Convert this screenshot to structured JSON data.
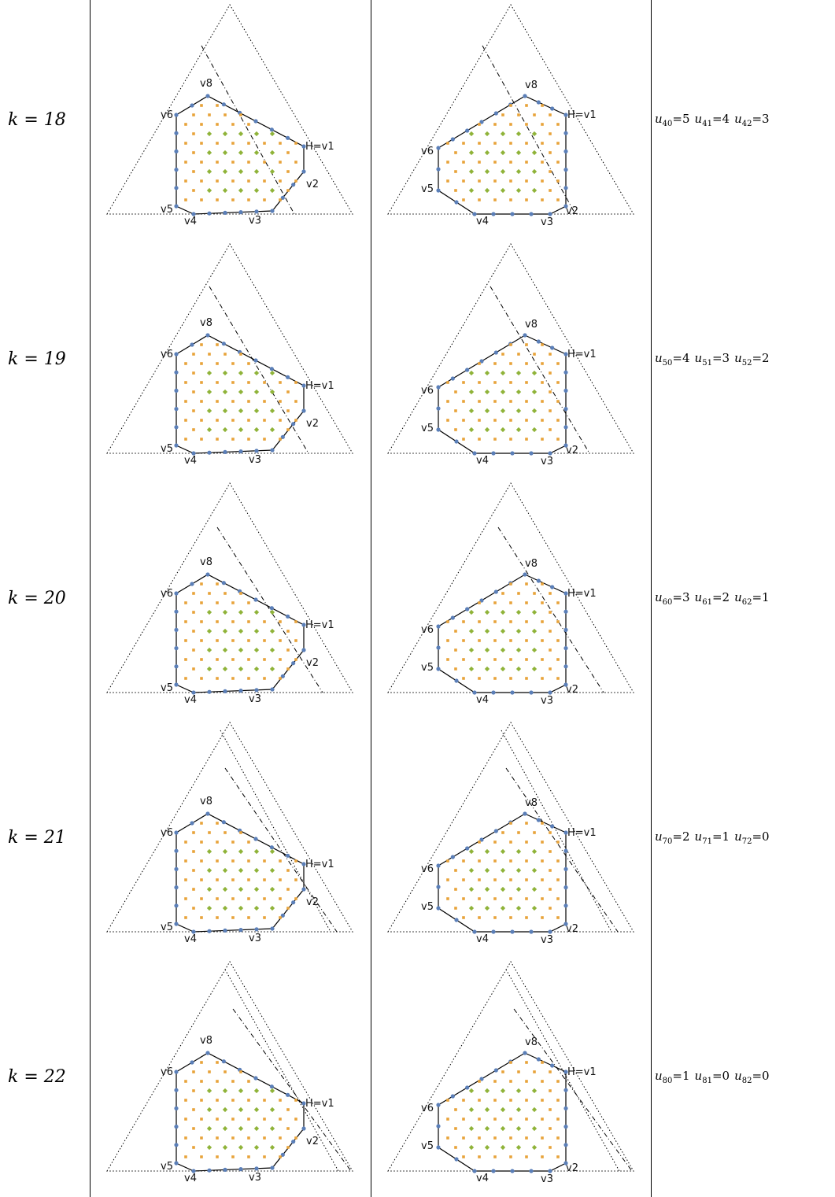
{
  "rows": [
    {
      "k": "k = 18",
      "u": [
        {
          "i": "40",
          "v": "5"
        },
        {
          "i": "41",
          "v": "4"
        },
        {
          "i": "42",
          "v": "3"
        }
      ]
    },
    {
      "k": "k = 19",
      "u": [
        {
          "i": "50",
          "v": "4"
        },
        {
          "i": "51",
          "v": "3"
        },
        {
          "i": "52",
          "v": "2"
        }
      ]
    },
    {
      "k": "k = 20",
      "u": [
        {
          "i": "60",
          "v": "3"
        },
        {
          "i": "61",
          "v": "2"
        },
        {
          "i": "62",
          "v": "1"
        }
      ]
    },
    {
      "k": "k = 21",
      "u": [
        {
          "i": "70",
          "v": "2"
        },
        {
          "i": "71",
          "v": "1"
        },
        {
          "i": "72",
          "v": "0"
        }
      ]
    },
    {
      "k": "k = 22",
      "u": [
        {
          "i": "80",
          "v": "1"
        },
        {
          "i": "81",
          "v": "0"
        },
        {
          "i": "82",
          "v": "0"
        }
      ]
    }
  ],
  "vertex_labels": [
    "H=v1",
    "v2",
    "v3",
    "v4",
    "v5",
    "v6",
    "v8"
  ],
  "colors": {
    "boundary_dots": "#5b7fb8",
    "orange_dots": "#e8a33a",
    "green_dots": "#8fb339",
    "lines": "#000000"
  }
}
